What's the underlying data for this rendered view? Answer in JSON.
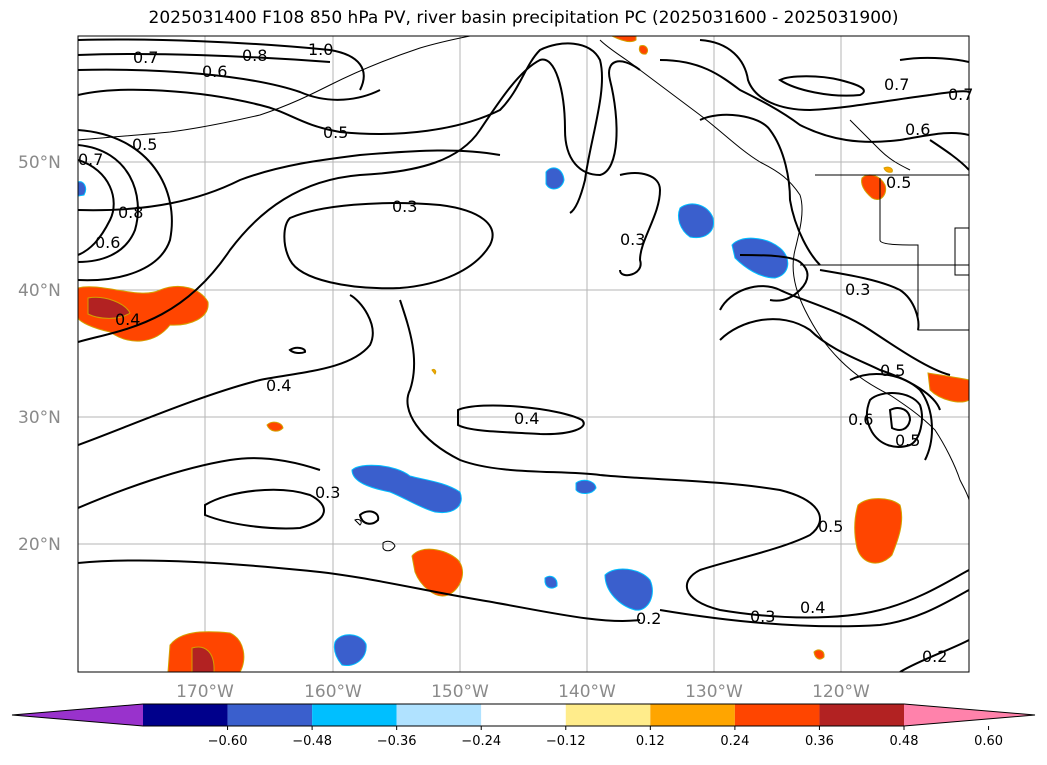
{
  "title": "2025031400 F108 850 hPa PV, river basin precipitation PC (2025031600 - 2025031900)",
  "lat_labels": [
    "50°N",
    "40°N",
    "30°N",
    "20°N"
  ],
  "lon_labels": [
    "170°W",
    "160°W",
    "150°W",
    "140°W",
    "130°W",
    "120°W"
  ],
  "contour_labels": [
    "1.0",
    "0.8",
    "0.7",
    "0.6",
    "0.5",
    "0.7",
    "0.5",
    "0.8",
    "0.6",
    "0.3",
    "0.3",
    "0.4",
    "0.4",
    "0.3",
    "0.4",
    "0.5",
    "0.2",
    "0.3",
    "0.4",
    "0.3",
    "0.5",
    "0.6",
    "0.5",
    "0.2",
    "0.7",
    "0.6",
    "0.7",
    "0.5"
  ],
  "colorbar": {
    "ticks": [
      "−0.60",
      "−0.48",
      "−0.36",
      "−0.24",
      "−0.12",
      "0.12",
      "0.24",
      "0.36",
      "0.48",
      "0.60"
    ],
    "colors": [
      "#9932cc",
      "#00008b",
      "#3a5fcd",
      "#00bfff",
      "#b0e2ff",
      "#ffffff",
      "#ffec8b",
      "#ffa500",
      "#ff4500",
      "#b22222",
      "#ff82ab"
    ]
  }
}
